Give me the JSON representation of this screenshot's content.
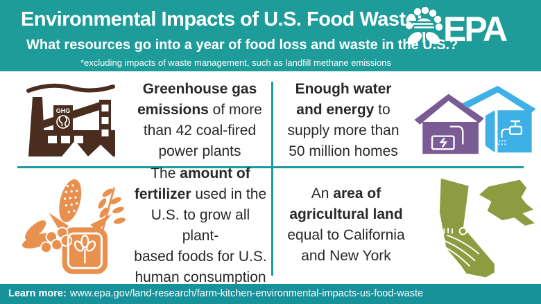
{
  "colors": {
    "header_teal": "#1d9c9a",
    "footer_teal": "#17929b",
    "divider_teal": "#1a9ba1",
    "factory_brown": "#4b2d20",
    "house_purple": "#7a5b94",
    "house_blue": "#3fb0e5",
    "fertilizer_orange": "#e8914e",
    "land_olive": "#8e9c41",
    "text_dark": "#2b2727"
  },
  "header": {
    "title": "Environmental Impacts of U.S. Food Waste:",
    "subtitle": "What resources go into a year of food loss and waste in the U.S.?",
    "footnote": "*excluding impacts of waste management, such as landfill methane emissions",
    "logo_text": "EPA",
    "factory_icon_label": "GHG"
  },
  "quadrants": [
    {
      "id": "greenhouse-gas",
      "icon": "factory-ghg-icon",
      "segments": [
        {
          "text": "Greenhouse gas\nemissions",
          "bold": true
        },
        {
          "text": " of more\nthan 42 coal-fired\npower plants",
          "bold": false
        }
      ]
    },
    {
      "id": "water-energy",
      "icon": "houses-water-energy-icon",
      "segments": [
        {
          "text": "Enough water\nand energy",
          "bold": true
        },
        {
          "text": " to\nsupply more than\n50 million homes",
          "bold": false
        }
      ]
    },
    {
      "id": "fertilizer",
      "icon": "fertilizer-sack-icon",
      "segments": [
        {
          "text": "The ",
          "bold": false
        },
        {
          "text": "amount of\nfertilizer",
          "bold": true
        },
        {
          "text": " used in the\nU.S. to grow all plant-\nbased foods for U.S.\nhuman consumption",
          "bold": false
        }
      ]
    },
    {
      "id": "agricultural-land",
      "icon": "california-new-york-icon",
      "segments": [
        {
          "text": "An ",
          "bold": false
        },
        {
          "text": "area of\nagricultural land",
          "bold": true
        },
        {
          "text": "\nequal to California\nand New York",
          "bold": false
        }
      ]
    }
  ],
  "footer": {
    "label": "Learn more:",
    "url": "www.epa.gov/land-research/farm-kitchen-environmental-impacts-us-food-waste"
  }
}
